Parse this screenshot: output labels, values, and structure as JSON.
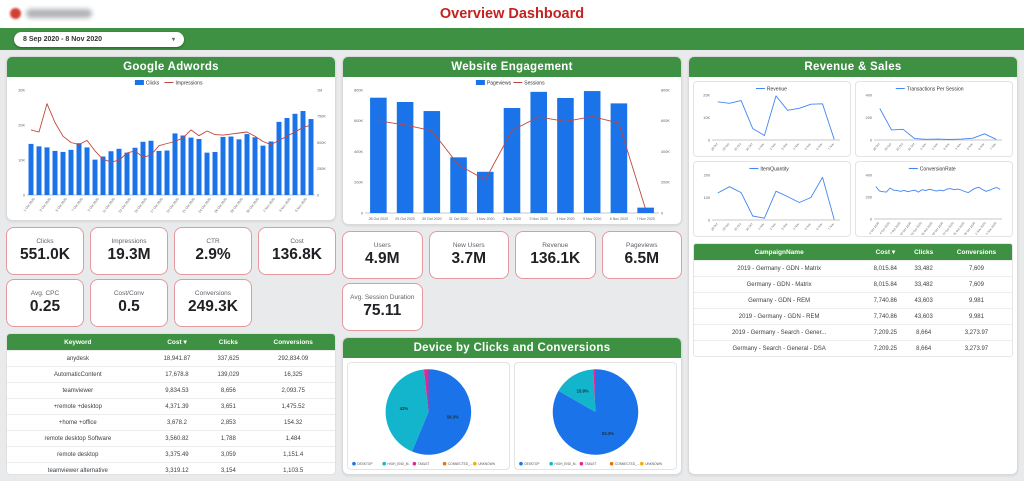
{
  "header": {
    "title": "Overview Dashboard",
    "date_range": "8 Sep 2020 - 8 Nov 2020"
  },
  "panels": {
    "adwords": {
      "title": "Google Adwords"
    },
    "engagement": {
      "title": "Website Engagement"
    },
    "devices": {
      "title": "Device by Clicks and Conversions"
    },
    "revenue": {
      "title": "Revenue & Sales"
    }
  },
  "scorecards": {
    "adwords_row1": [
      {
        "label": "Clicks",
        "value": "551.0K"
      },
      {
        "label": "Impressions",
        "value": "19.3M"
      },
      {
        "label": "CTR",
        "value": "2.9%"
      },
      {
        "label": "Cost",
        "value": "136.8K"
      }
    ],
    "adwords_row2": [
      {
        "label": "Avg. CPC",
        "value": "0.25"
      },
      {
        "label": "Cost/Conv",
        "value": "0.5"
      },
      {
        "label": "Conversions",
        "value": "249.3K"
      }
    ],
    "engagement_row1": [
      {
        "label": "Users",
        "value": "4.9M"
      },
      {
        "label": "New Users",
        "value": "3.7M"
      },
      {
        "label": "Revenue",
        "value": "136.1K"
      },
      {
        "label": "Pageviews",
        "value": "6.5M"
      }
    ],
    "engagement_row2": [
      {
        "label": "Avg. Session Duration",
        "value": "75.11"
      }
    ]
  },
  "tables": {
    "keywords": {
      "columns": [
        "Keyword",
        "Cost",
        "Clicks",
        "Conversions"
      ],
      "sorted_by": "Cost",
      "rows": [
        [
          "anydesk",
          "18,941.87",
          "337,625",
          "292,834.09"
        ],
        [
          "AutomaticContent",
          "17,678.8",
          "139,029",
          "16,325"
        ],
        [
          "teamviewer",
          "9,834.53",
          "8,656",
          "2,093.75"
        ],
        [
          "+remote +desktop",
          "4,371.39",
          "3,651",
          "1,475.52"
        ],
        [
          "+home +office",
          "3,678.2",
          "2,853",
          "154.32"
        ],
        [
          "remote desktop Software",
          "3,560.82",
          "1,788",
          "1,484"
        ],
        [
          "remote desktop",
          "3,375.49",
          "3,059",
          "1,151.4"
        ],
        [
          "teamviewer alternative",
          "3,319.12",
          "3,154",
          "1,103.5"
        ]
      ]
    },
    "campaigns": {
      "columns": [
        "CampaignName",
        "Cost",
        "Clicks",
        "Conversions"
      ],
      "sorted_by": "Cost",
      "rows": [
        [
          "2019 - Germany - GDN - Matrix",
          "8,015.84",
          "33,482",
          "7,609"
        ],
        [
          "Germany - GDN - Matrix",
          "8,015.84",
          "33,482",
          "7,609"
        ],
        [
          "Germany - GDN - REM",
          "7,740.86",
          "43,603",
          "9,981"
        ],
        [
          "2019 - Germany - GDN - REM",
          "7,740.86",
          "43,603",
          "9,981"
        ],
        [
          "2019 - Germany - Search - Gener...",
          "7,209.25",
          "8,664",
          "3,273.97"
        ],
        [
          "Germany - Search - General - DSA",
          "7,209.25",
          "8,664",
          "3,273.97"
        ]
      ]
    }
  },
  "colors": {
    "accent_green": "#3e9142",
    "bar_blue": "#1a73e8",
    "line_red": "#c0473e",
    "line_blue": "#4285f4",
    "teal": "#12b5cb",
    "pink": "#e52592",
    "orange": "#e8710a",
    "yellow": "#f9ab00",
    "title_red": "#c5221f",
    "scorecard_border": "#e5989e"
  },
  "chart_data": [
    {
      "id": "adwords_clicks_impressions",
      "type": "bar+line",
      "categories": [
        "1 Oct 2020",
        "2 Oct 2020",
        "3 Oct 2020",
        "4 Oct 2020",
        "5 Oct 2020",
        "6 Oct 2020",
        "7 Oct 2020",
        "8 Oct 2020",
        "9 Oct 2020",
        "10 Oct 2020",
        "11 Oct 2020",
        "12 Oct 2020",
        "13 Oct 2020",
        "14 Oct 2020",
        "15 Oct 2020",
        "16 Oct 2020",
        "17 Oct 2020",
        "18 Oct 2020",
        "19 Oct 2020",
        "20 Oct 2020",
        "21 Oct 2020",
        "22 Oct 2020",
        "23 Oct 2020",
        "24 Oct 2020",
        "25 Oct 2020",
        "26 Oct 2020",
        "27 Oct 2020",
        "28 Oct 2020",
        "29 Oct 2020",
        "30 Oct 2020",
        "31 Oct 2020",
        "1 Nov 2020",
        "2 Nov 2020",
        "3 Nov 2020",
        "4 Nov 2020",
        "5 Nov 2020"
      ],
      "x_tick_labels": [
        "1 Oct 2020",
        "3 Oct 2020",
        "5 Oct 2020",
        "7 Oct 2020",
        "9 Oct 2020",
        "11 Oct 2020",
        "13 Oct 2020",
        "15 Oct 2020",
        "17 Oct 2020",
        "19 Oct 2020",
        "21 Oct 2020",
        "24 Oct 2020",
        "26 Oct 2020",
        "28 Oct 2020",
        "30 Oct 2020",
        "1 Nov 2020",
        "3 Nov 2020",
        "5 Nov 2020"
      ],
      "series": [
        {
          "name": "Clicks",
          "type": "bar",
          "axis": "left",
          "color_key": "bar_blue",
          "values": [
            14600,
            13900,
            13600,
            12600,
            12300,
            12900,
            14800,
            13600,
            10100,
            11000,
            12500,
            13200,
            12100,
            13500,
            15200,
            15500,
            12600,
            12700,
            17600,
            17000,
            16400,
            16000,
            12100,
            12300,
            16600,
            16700,
            15900,
            17400,
            16500,
            14100,
            15300,
            20900,
            22000,
            23200,
            24000,
            21700
          ]
        },
        {
          "name": "Impressions",
          "type": "line",
          "axis": "right",
          "color_key": "line_red",
          "values": [
            620000,
            600000,
            870000,
            690000,
            560000,
            500000,
            480000,
            520000,
            420000,
            340000,
            315000,
            330000,
            400000,
            420000,
            360000,
            380000,
            470000,
            490000,
            510000,
            545000,
            620000,
            565000,
            610000,
            575000,
            570000,
            580000,
            590000,
            600000,
            560000,
            510000,
            480000,
            520000,
            560000,
            600000,
            645000,
            665000
          ]
        }
      ],
      "left": {
        "max": 30000,
        "ticks": [
          "0",
          "10K",
          "20K",
          "30K"
        ]
      },
      "right": {
        "max": 1000000,
        "ticks": [
          "0",
          "250K",
          "500K",
          "750K",
          "1M"
        ]
      }
    },
    {
      "id": "engagement_pageviews_sessions",
      "type": "bar+line",
      "categories": [
        "28 Oct 2020",
        "29 Oct 2020",
        "30 Oct 2020",
        "31 Oct 2020",
        "1 Nov 2020",
        "2 Nov 2020",
        "3 Nov 2020",
        "4 Nov 2020",
        "5 Nov 2020",
        "6 Nov 2020",
        "7 Nov 2020"
      ],
      "series": [
        {
          "name": "Pageviews",
          "type": "bar",
          "axis": "left",
          "color_key": "bar_blue",
          "values": [
            750000,
            722000,
            663000,
            362000,
            268000,
            683000,
            788000,
            748000,
            793000,
            713000,
            35000
          ]
        },
        {
          "name": "Sessions",
          "type": "line",
          "axis": "right",
          "color_key": "line_red",
          "values": [
            600000,
            573000,
            535000,
            312000,
            215000,
            537000,
            625000,
            596000,
            627000,
            585000,
            25000
          ]
        }
      ],
      "left": {
        "max": 800000,
        "ticks": [
          "0",
          "200K",
          "400K",
          "600K",
          "800K"
        ]
      },
      "right": {
        "max": 800000,
        "ticks": [
          "0",
          "200K",
          "400K",
          "600K",
          "800K"
        ]
      }
    },
    {
      "id": "revenue_by_day",
      "type": "line",
      "categories": [
        "28 Oct",
        "29 Oct",
        "30 Oct",
        "31 Oct",
        "1 Nov",
        "2 Nov",
        "3 Nov",
        "4 Nov",
        "5 Nov",
        "6 Nov",
        "7 Nov"
      ],
      "series": [
        {
          "name": "Revenue",
          "type": "line",
          "axis": "left",
          "color_key": "line_blue",
          "values": [
            17000,
            16300,
            17500,
            5100,
            2000,
            19600,
            13200,
            14100,
            15900,
            16100,
            300
          ]
        }
      ],
      "left": {
        "max": 20000,
        "ticks": [
          "0",
          "10K",
          "20K"
        ]
      }
    },
    {
      "id": "transactions_per_session",
      "type": "line",
      "categories": [
        "28 Oct",
        "29 Oct",
        "30 Oct",
        "31 Oct",
        "1 Nov",
        "2 Nov",
        "3 Nov",
        "4 Nov",
        "5 Nov",
        "6 Nov",
        "7 Nov"
      ],
      "series": [
        {
          "name": "Transactions Per Session",
          "type": "line",
          "axis": "left",
          "color_key": "line_blue",
          "values": [
            280,
            90,
            95,
            12,
            6,
            8,
            4,
            8,
            16,
            55,
            6
          ]
        }
      ],
      "left": {
        "max": 400,
        "ticks": [
          "0",
          "200",
          "400"
        ]
      }
    },
    {
      "id": "item_quantity",
      "type": "line",
      "categories": [
        "28 Oct",
        "29 Oct",
        "30 Oct",
        "31 Oct",
        "1 Nov",
        "2 Nov",
        "3 Nov",
        "4 Nov",
        "5 Nov",
        "6 Nov",
        "7 Nov"
      ],
      "series": [
        {
          "name": "ItemQuantity",
          "type": "line",
          "axis": "left",
          "color_key": "line_blue",
          "values": [
            120,
            148,
            122,
            18,
            8,
            128,
            104,
            78,
            100,
            190,
            2
          ]
        }
      ],
      "left": {
        "max": 200,
        "ticks": [
          "0",
          "100",
          "200"
        ]
      }
    },
    {
      "id": "conversion_rate",
      "type": "line",
      "categories": [
        "1 Oct 2020",
        "2 Oct 2020",
        "3 Oct 2020",
        "4 Oct 2020",
        "5 Oct 2020",
        "6 Oct 2020",
        "7 Oct 2020",
        "8 Oct 2020",
        "9 Oct 2020",
        "10 Oct 2020",
        "11 Oct 2020",
        "12 Oct 2020",
        "13 Oct 2020",
        "14 Oct 2020",
        "15 Oct 2020",
        "16 Oct 2020",
        "17 Oct 2020",
        "18 Oct 2020",
        "19 Oct 2020",
        "20 Oct 2020",
        "21 Oct 2020",
        "22 Oct 2020",
        "23 Oct 2020",
        "24 Oct 2020",
        "25 Oct 2020",
        "26 Oct 2020",
        "27 Oct 2020",
        "28 Oct 2020",
        "29 Oct 2020",
        "30 Oct 2020",
        "31 Oct 2020",
        "1 Nov 2020",
        "2 Nov 2020",
        "3 Nov 2020",
        "4 Nov 2020",
        "5 Nov 2020"
      ],
      "x_tick_labels": [
        "1 Oct 2020",
        "4 Oct 2020",
        "7 Oct 2020",
        "10 Oct 2020",
        "13 Oct 2020",
        "16 Oct 2020",
        "19 Oct 2020",
        "22 Oct 2020",
        "25 Oct 2020",
        "28 Oct 2020",
        "1 Nov 2020",
        "4 Nov 2020"
      ],
      "series": [
        {
          "name": "ConversionRate",
          "type": "line",
          "axis": "left",
          "color_key": "line_blue",
          "values": [
            295,
            255,
            248,
            245,
            282,
            262,
            258,
            252,
            260,
            248,
            256,
            262,
            245,
            266,
            258,
            270,
            264,
            254,
            262,
            256,
            272,
            276,
            266,
            272,
            264,
            250,
            240,
            262,
            280,
            288,
            268,
            252,
            262,
            276,
            286,
            268
          ]
        }
      ],
      "left": {
        "max": 400,
        "ticks": [
          "0",
          "200",
          "400"
        ]
      }
    },
    {
      "id": "clicks_by_device",
      "type": "pie",
      "slices": [
        {
          "label": "DESKTOP",
          "pct": 56.3,
          "show": "56.3%",
          "color_key": "bar_blue"
        },
        {
          "label": "HIGH_END_M..",
          "pct": 42,
          "show": "42%",
          "color_key": "teal"
        },
        {
          "label": "TABLET",
          "pct": 1.7,
          "color_key": "pink"
        }
      ],
      "legend": [
        "DESKTOP",
        "HIGH_END_M..",
        "TABLET",
        "CONNECTED_...",
        "UNKNOWN"
      ],
      "legend_color_keys": [
        "bar_blue",
        "teal",
        "pink",
        "orange",
        "yellow"
      ]
    },
    {
      "id": "conversions_by_device",
      "type": "pie",
      "slices": [
        {
          "label": "DESKTOP",
          "pct": 83.3,
          "show": "83.3%",
          "color_key": "bar_blue"
        },
        {
          "label": "HIGH_END_M..",
          "pct": 15.9,
          "show": "15.9%",
          "color_key": "teal"
        },
        {
          "label": "TABLET",
          "pct": 0.8,
          "color_key": "pink"
        }
      ],
      "legend": [
        "DESKTOP",
        "HIGH_END_M..",
        "TABLET",
        "CONNECTED_...",
        "UNKNOWN"
      ],
      "legend_color_keys": [
        "bar_blue",
        "teal",
        "pink",
        "orange",
        "yellow"
      ]
    }
  ]
}
